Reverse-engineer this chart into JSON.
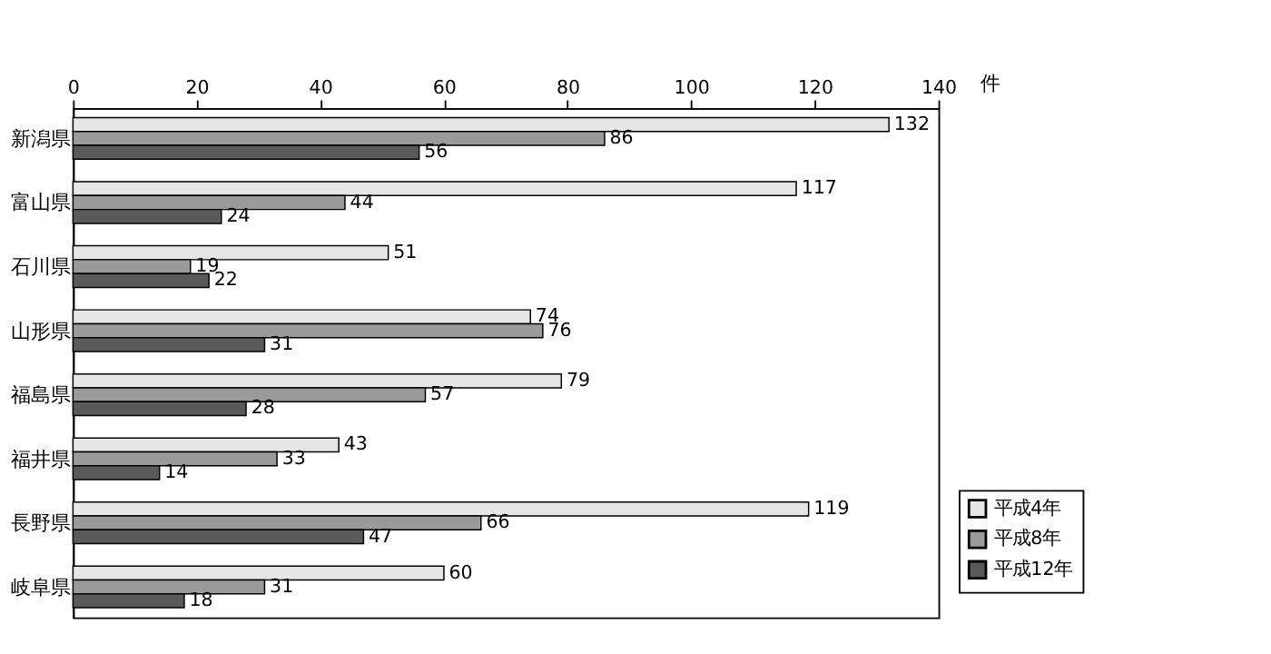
{
  "chart_data": {
    "type": "bar",
    "orientation": "horizontal",
    "xlabel": "件",
    "categories": [
      "新潟県",
      "富山県",
      "石川県",
      "山形県",
      "福島県",
      "福井県",
      "長野県",
      "岐阜県"
    ],
    "series": [
      {
        "name": "平成4年",
        "color": "#e6e6e6",
        "values": [
          132,
          117,
          51,
          74,
          79,
          43,
          119,
          60
        ]
      },
      {
        "name": "平成8年",
        "color": "#9a9a9a",
        "values": [
          86,
          44,
          19,
          76,
          57,
          33,
          66,
          31
        ]
      },
      {
        "name": "平成12年",
        "color": "#5a5a5a",
        "values": [
          56,
          24,
          22,
          31,
          28,
          14,
          47,
          18
        ]
      }
    ],
    "xlim": [
      0,
      140
    ],
    "xticks": [
      0,
      20,
      40,
      60,
      80,
      100,
      120,
      140
    ],
    "data_labels": true,
    "legend": "bottom right",
    "grid": false
  }
}
